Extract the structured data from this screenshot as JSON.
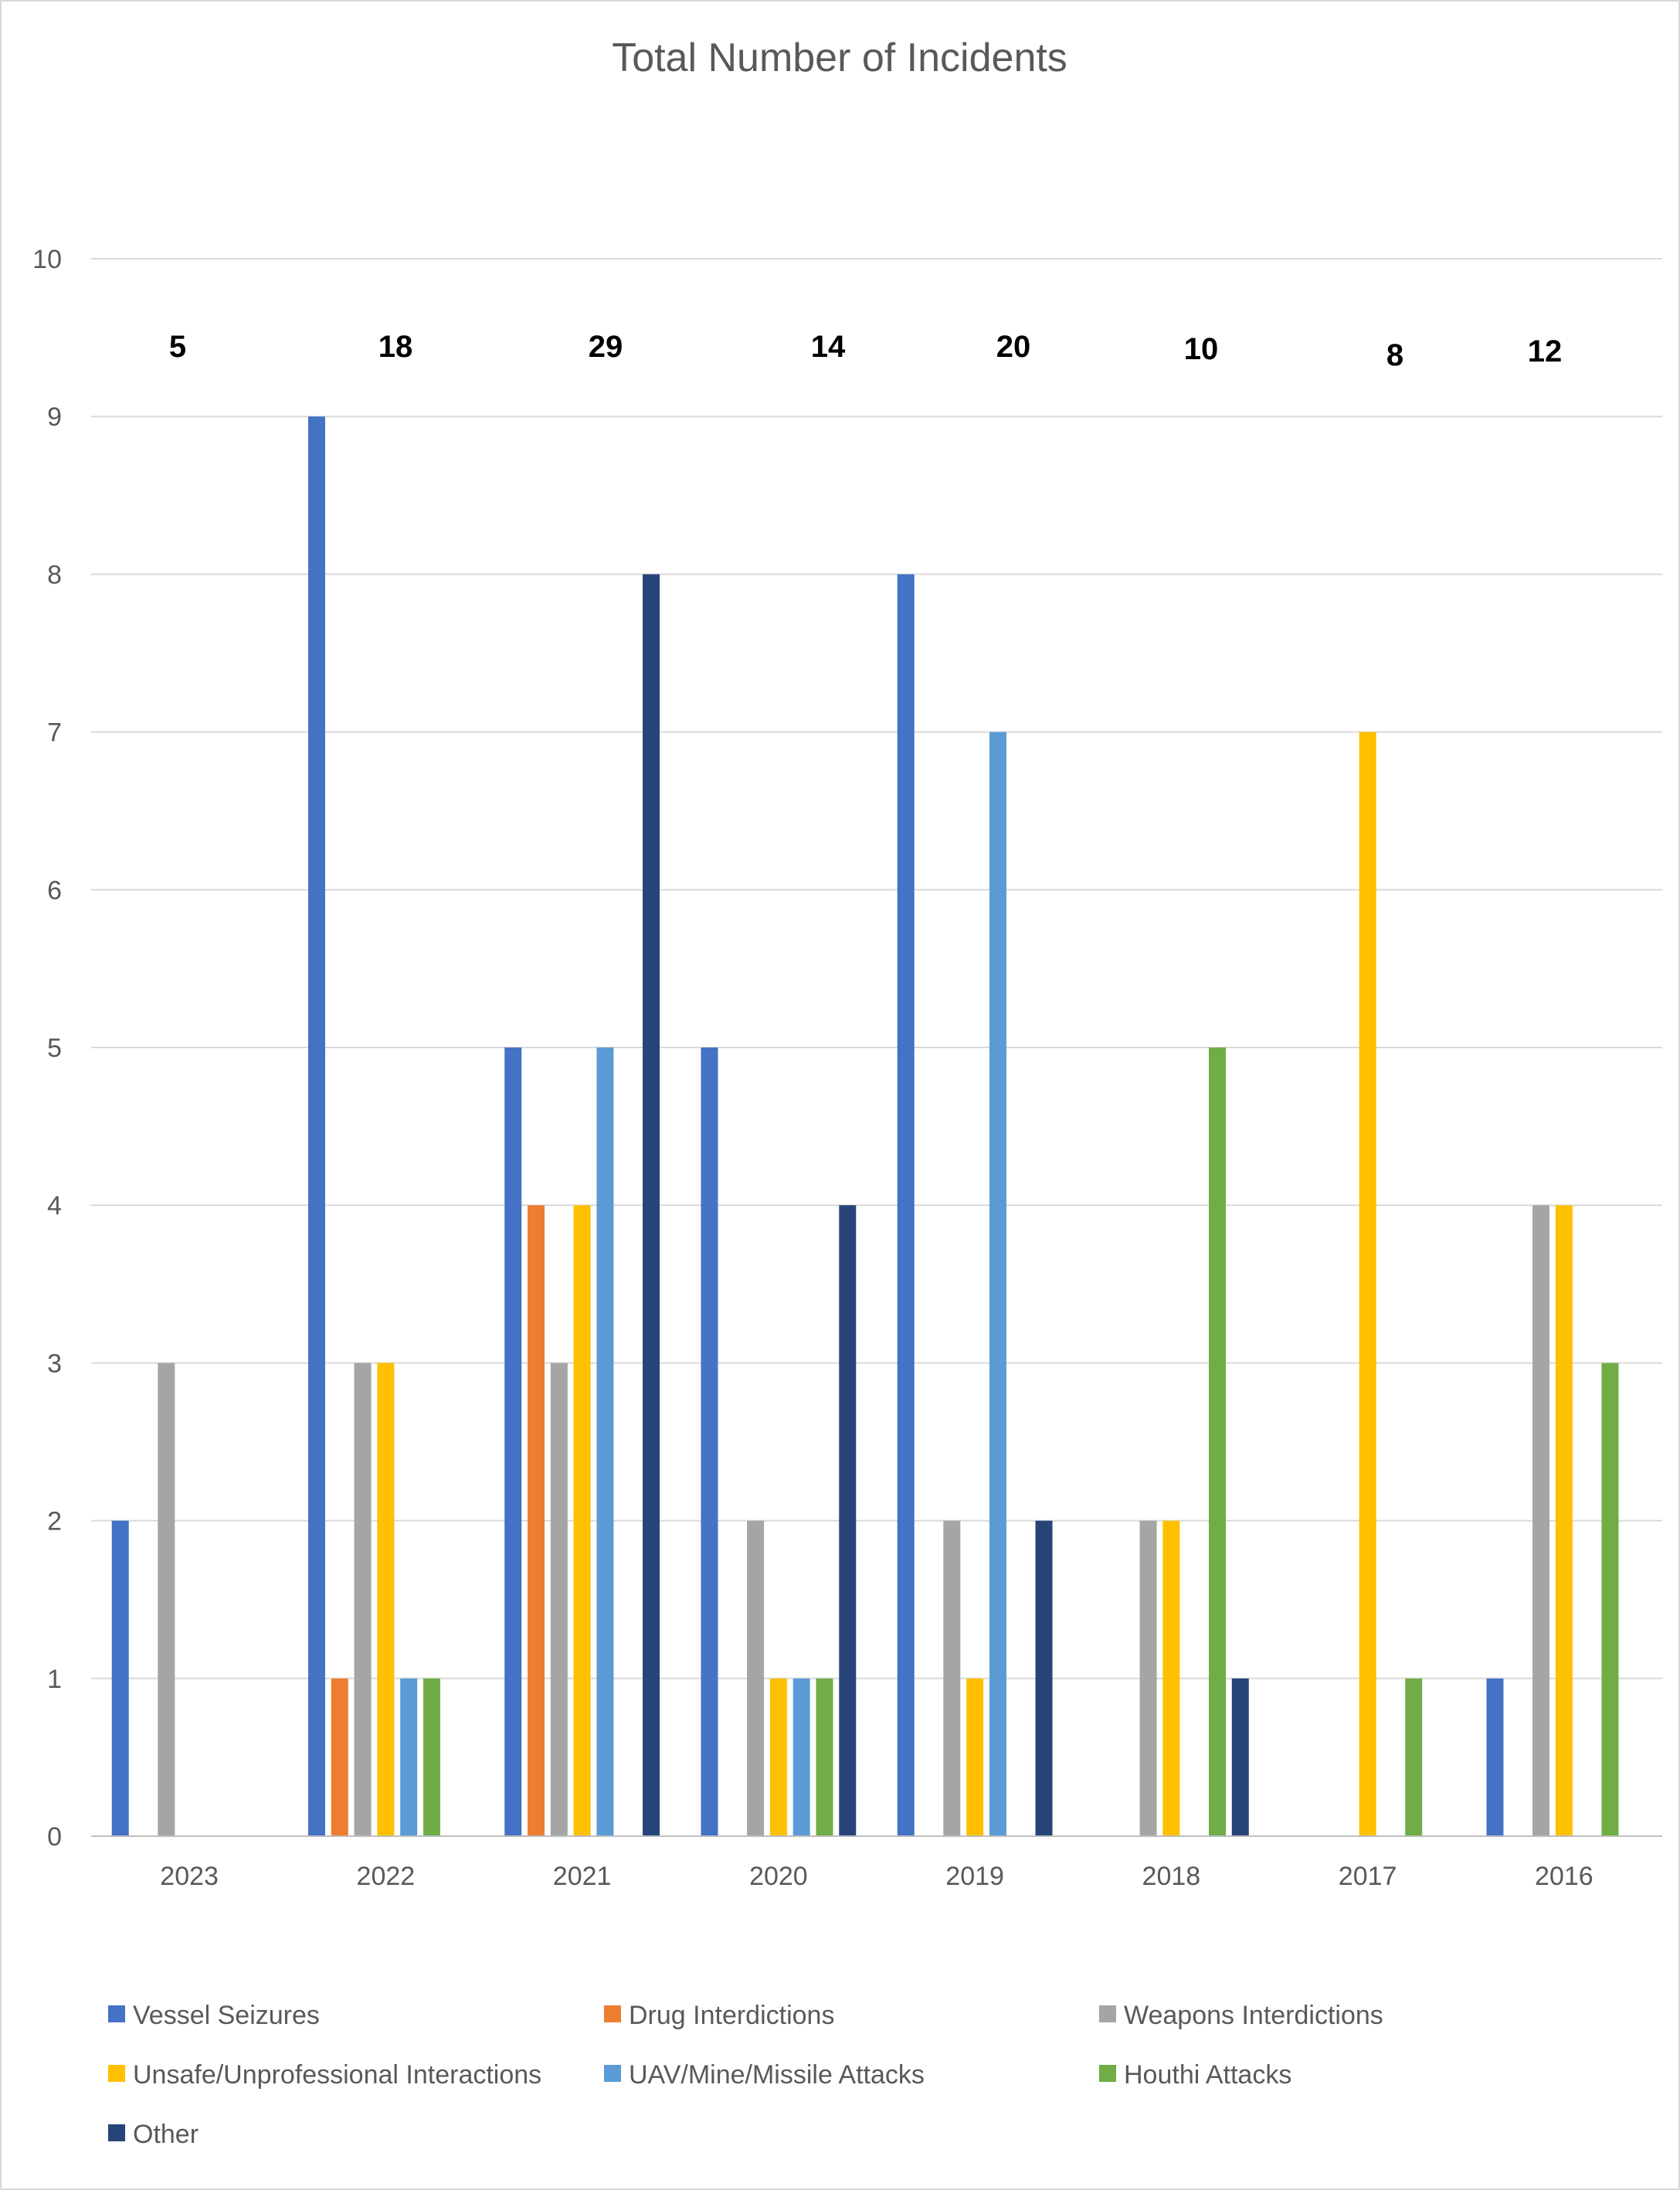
{
  "chart_data": {
    "type": "bar",
    "title": "Total Number of Incidents",
    "xlabel": "",
    "ylabel": "",
    "ylim": [
      0,
      10
    ],
    "yticks": [
      "0",
      "1",
      "2",
      "3",
      "4",
      "5",
      "6",
      "7",
      "8",
      "9",
      "10"
    ],
    "grid": true,
    "legend_position": "bottom",
    "categories": [
      "2023",
      "2022",
      "2021",
      "2020",
      "2019",
      "2018",
      "2017",
      "2016"
    ],
    "totals": [
      "5",
      "18",
      "29",
      "14",
      "20",
      "10",
      "8",
      "12"
    ],
    "series": [
      {
        "name": "Vessel Seizures",
        "color": "#4472c4",
        "values": [
          2,
          9,
          5,
          5,
          8,
          0,
          0,
          1
        ]
      },
      {
        "name": "Drug Interdictions",
        "color": "#ed7d31",
        "values": [
          0,
          1,
          4,
          0,
          0,
          0,
          0,
          0
        ]
      },
      {
        "name": "Weapons Interdictions",
        "color": "#a5a5a5",
        "values": [
          3,
          3,
          3,
          2,
          2,
          2,
          0,
          4
        ]
      },
      {
        "name": "Unsafe/Unprofessional Interactions",
        "color": "#ffc000",
        "values": [
          0,
          3,
          4,
          1,
          1,
          2,
          7,
          4
        ]
      },
      {
        "name": "UAV/Mine/Missile Attacks",
        "color": "#5b9bd5",
        "values": [
          0,
          1,
          5,
          1,
          7,
          0,
          0,
          0
        ]
      },
      {
        "name": "Houthi Attacks",
        "color": "#70ad47",
        "values": [
          0,
          1,
          0,
          1,
          0,
          5,
          1,
          3
        ]
      },
      {
        "name": "Other",
        "color": "#264478",
        "values": [
          0,
          0,
          8,
          4,
          2,
          1,
          0,
          0
        ]
      }
    ]
  }
}
